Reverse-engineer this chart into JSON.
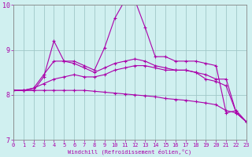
{
  "x": [
    0,
    1,
    2,
    3,
    4,
    5,
    6,
    7,
    8,
    9,
    10,
    11,
    12,
    13,
    14,
    15,
    16,
    17,
    18,
    19,
    20,
    21,
    22,
    23
  ],
  "series": [
    [
      8.1,
      8.1,
      8.1,
      8.4,
      9.2,
      8.75,
      8.75,
      8.65,
      8.55,
      9.05,
      9.7,
      10.1,
      10.1,
      9.5,
      8.85,
      8.85,
      8.75,
      8.75,
      8.75,
      8.7,
      8.65,
      7.6,
      7.65,
      7.4
    ],
    [
      8.1,
      8.1,
      8.15,
      8.45,
      8.75,
      8.75,
      8.7,
      8.6,
      8.5,
      8.6,
      8.7,
      8.75,
      8.8,
      8.75,
      8.65,
      8.6,
      8.55,
      8.55,
      8.5,
      8.45,
      8.35,
      8.35,
      7.6,
      7.4
    ],
    [
      8.1,
      8.1,
      8.15,
      8.25,
      8.35,
      8.4,
      8.45,
      8.4,
      8.4,
      8.45,
      8.55,
      8.6,
      8.65,
      8.65,
      8.6,
      8.55,
      8.55,
      8.55,
      8.5,
      8.35,
      8.3,
      8.2,
      7.6,
      7.4
    ],
    [
      8.1,
      8.1,
      8.1,
      8.1,
      8.1,
      8.1,
      8.1,
      8.1,
      8.08,
      8.06,
      8.04,
      8.02,
      8.0,
      7.98,
      7.96,
      7.92,
      7.9,
      7.88,
      7.85,
      7.82,
      7.78,
      7.65,
      7.6,
      7.4
    ]
  ],
  "line_color": "#aa00aa",
  "bg_color": "#d0f0f0",
  "grid_color": "#a0c8c8",
  "xlabel": "Windchill (Refroidissement éolien,°C)",
  "ylim": [
    7,
    10
  ],
  "xlim": [
    0,
    23
  ],
  "yticks": [
    7,
    8,
    9,
    10
  ],
  "xticks": [
    0,
    1,
    2,
    3,
    4,
    5,
    6,
    7,
    8,
    9,
    10,
    11,
    12,
    13,
    14,
    15,
    16,
    17,
    18,
    19,
    20,
    21,
    22,
    23
  ]
}
